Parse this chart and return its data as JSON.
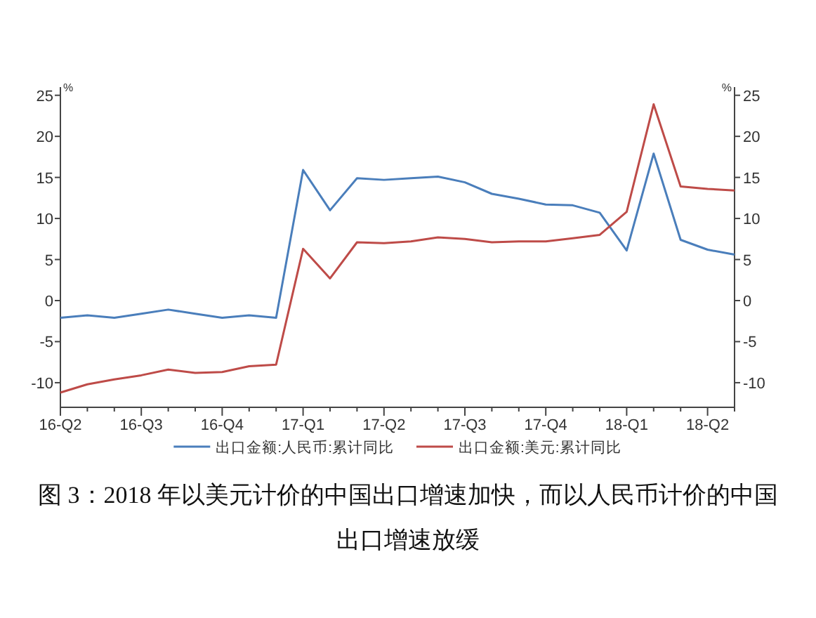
{
  "chart_data": {
    "type": "line",
    "title": "图 3：2018 年以美元计价的中国出口增速加快，而以人民币计价的中国出口增速放缓",
    "ylabel": "%",
    "y2label": "%",
    "categories": [
      "16-Q2",
      null,
      null,
      "16-Q3",
      null,
      null,
      "16-Q4",
      null,
      null,
      "17-Q1",
      null,
      null,
      "17-Q2",
      null,
      null,
      "17-Q3",
      null,
      null,
      "17-Q4",
      null,
      null,
      "18-Q1",
      null,
      null,
      "18-Q2",
      null
    ],
    "series": [
      {
        "name": "出口金额:人民币:累计同比",
        "color": "#4a7ebb",
        "values": [
          -2.1,
          -1.8,
          -2.1,
          -1.6,
          -1.1,
          -1.6,
          -2.1,
          -1.8,
          -2.1,
          15.9,
          11.0,
          14.9,
          14.7,
          14.9,
          15.1,
          14.4,
          13.0,
          12.4,
          11.7,
          11.6,
          10.7,
          6.1,
          17.9,
          7.4,
          6.2,
          5.6
        ]
      },
      {
        "name": "出口金额:美元:累计同比",
        "color": "#be4b48",
        "values": [
          -11.2,
          -10.2,
          -9.6,
          -9.1,
          -8.4,
          -8.8,
          -8.7,
          -8.0,
          -7.8,
          6.3,
          2.7,
          7.1,
          7.0,
          7.2,
          7.7,
          7.5,
          7.1,
          7.2,
          7.2,
          7.6,
          8.0,
          10.8,
          23.9,
          13.9,
          13.6,
          13.4
        ]
      }
    ],
    "ylim": [
      -13,
      26
    ],
    "yticks": [
      -10,
      -5,
      0,
      5,
      10,
      15,
      20,
      25
    ],
    "y2lim": [
      -13,
      26
    ],
    "y2ticks": [
      -10,
      -5,
      0,
      5,
      10,
      15,
      20,
      25
    ],
    "grid": false,
    "legend": "bottom",
    "line_style": "solid",
    "marker": "none"
  }
}
